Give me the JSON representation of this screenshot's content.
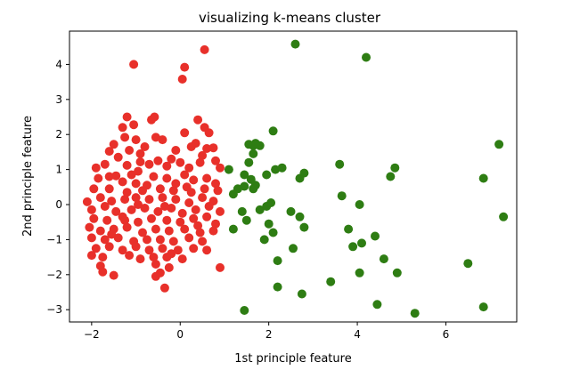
{
  "chart_data": {
    "type": "scatter",
    "title": "visualizing k-means cluster",
    "xlabel": "1st principle feature",
    "ylabel": "2nd principle feature",
    "xlim": [
      -2.5,
      7.6
    ],
    "ylim": [
      -3.35,
      4.95
    ],
    "xticks": [
      -2,
      0,
      2,
      4,
      6
    ],
    "yticks": [
      -3,
      -2,
      -1,
      0,
      1,
      2,
      3,
      4
    ],
    "grid": false,
    "legend": "none",
    "series": [
      {
        "color": "#e8302a",
        "points": [
          [
            -1.05,
            4.0
          ],
          [
            0.1,
            3.92
          ],
          [
            0.05,
            3.58
          ],
          [
            0.55,
            4.42
          ],
          [
            -1.2,
            2.5
          ],
          [
            -0.65,
            2.42
          ],
          [
            -0.58,
            2.5
          ],
          [
            -1.3,
            2.2
          ],
          [
            -1.05,
            2.28
          ],
          [
            0.4,
            2.42
          ],
          [
            0.55,
            2.2
          ],
          [
            0.65,
            2.05
          ],
          [
            0.1,
            2.05
          ],
          [
            -0.55,
            1.92
          ],
          [
            -1.5,
            1.72
          ],
          [
            -1.25,
            1.92
          ],
          [
            -1.0,
            1.85
          ],
          [
            -0.4,
            1.85
          ],
          [
            -0.8,
            1.65
          ],
          [
            0.35,
            1.75
          ],
          [
            0.6,
            1.6
          ],
          [
            0.75,
            1.62
          ],
          [
            -0.1,
            1.55
          ],
          [
            0.25,
            1.65
          ],
          [
            -1.6,
            1.52
          ],
          [
            -1.4,
            1.35
          ],
          [
            -1.7,
            1.15
          ],
          [
            -1.9,
            1.05
          ],
          [
            -1.2,
            1.12
          ],
          [
            -0.9,
            1.22
          ],
          [
            -0.7,
            1.15
          ],
          [
            -0.5,
            1.25
          ],
          [
            -0.2,
            1.3
          ],
          [
            -0.3,
            1.1
          ],
          [
            0.0,
            1.2
          ],
          [
            0.2,
            1.05
          ],
          [
            0.45,
            1.2
          ],
          [
            0.8,
            1.25
          ],
          [
            0.9,
            1.05
          ],
          [
            -1.45,
            0.82
          ],
          [
            -1.1,
            0.85
          ],
          [
            -0.95,
            0.95
          ],
          [
            -1.85,
            0.75
          ],
          [
            -1.6,
            0.8
          ],
          [
            -1.3,
            0.65
          ],
          [
            -1.0,
            0.6
          ],
          [
            -0.6,
            0.8
          ],
          [
            -0.3,
            0.75
          ],
          [
            0.1,
            0.85
          ],
          [
            0.3,
            0.7
          ],
          [
            0.6,
            0.75
          ],
          [
            0.8,
            0.6
          ],
          [
            -0.75,
            0.55
          ],
          [
            0.15,
            0.5
          ],
          [
            -1.95,
            0.45
          ],
          [
            -1.6,
            0.45
          ],
          [
            -1.2,
            0.35
          ],
          [
            -0.85,
            0.4
          ],
          [
            -0.45,
            0.45
          ],
          [
            -0.15,
            0.4
          ],
          [
            0.25,
            0.35
          ],
          [
            0.55,
            0.45
          ],
          [
            0.85,
            0.4
          ],
          [
            -2.1,
            0.08
          ],
          [
            -1.8,
            0.2
          ],
          [
            -1.55,
            0.1
          ],
          [
            -1.25,
            0.15
          ],
          [
            -1.0,
            0.2
          ],
          [
            -0.7,
            0.15
          ],
          [
            -0.4,
            0.2
          ],
          [
            -0.1,
            0.15
          ],
          [
            0.2,
            0.05
          ],
          [
            0.5,
            0.2
          ],
          [
            0.75,
            0.1
          ],
          [
            -0.95,
            0.0
          ],
          [
            -0.35,
            -0.05
          ],
          [
            -2.0,
            -0.15
          ],
          [
            -1.7,
            -0.05
          ],
          [
            -1.45,
            -0.2
          ],
          [
            -1.1,
            -0.15
          ],
          [
            -0.8,
            -0.1
          ],
          [
            -0.5,
            -0.2
          ],
          [
            -0.2,
            -0.1
          ],
          [
            0.05,
            -0.25
          ],
          [
            0.35,
            -0.15
          ],
          [
            0.65,
            -0.05
          ],
          [
            0.9,
            -0.2
          ],
          [
            -1.95,
            -0.4
          ],
          [
            -1.65,
            -0.45
          ],
          [
            -1.3,
            -0.35
          ],
          [
            -0.95,
            -0.5
          ],
          [
            -0.65,
            -0.4
          ],
          [
            -0.3,
            -0.45
          ],
          [
            0.0,
            -0.5
          ],
          [
            0.3,
            -0.4
          ],
          [
            0.6,
            -0.35
          ],
          [
            0.8,
            -0.55
          ],
          [
            -2.05,
            -0.65
          ],
          [
            -1.8,
            -0.75
          ],
          [
            -1.5,
            -0.7
          ],
          [
            -1.2,
            -0.65
          ],
          [
            -0.85,
            -0.8
          ],
          [
            -0.55,
            -0.7
          ],
          [
            -0.25,
            -0.75
          ],
          [
            0.1,
            -0.7
          ],
          [
            0.4,
            -0.6
          ],
          [
            0.75,
            -0.75
          ],
          [
            -2.0,
            -0.95
          ],
          [
            -1.7,
            -1.0
          ],
          [
            -1.4,
            -0.95
          ],
          [
            -1.05,
            -1.05
          ],
          [
            -0.75,
            -1.0
          ],
          [
            -0.45,
            -1.0
          ],
          [
            -0.15,
            -1.05
          ],
          [
            0.2,
            -0.95
          ],
          [
            0.5,
            -1.05
          ],
          [
            -1.9,
            -1.25
          ],
          [
            -1.6,
            -1.2
          ],
          [
            -1.3,
            -1.3
          ],
          [
            -1.0,
            -1.2
          ],
          [
            -0.7,
            -1.3
          ],
          [
            -0.4,
            -1.25
          ],
          [
            -0.05,
            -1.3
          ],
          [
            0.3,
            -1.25
          ],
          [
            -2.0,
            -1.45
          ],
          [
            -1.75,
            -1.5
          ],
          [
            -1.15,
            -1.45
          ],
          [
            -0.9,
            -1.55
          ],
          [
            -0.6,
            -1.5
          ],
          [
            -0.3,
            -1.5
          ],
          [
            0.05,
            -1.55
          ],
          [
            -1.8,
            -1.75
          ],
          [
            -0.55,
            -1.7
          ],
          [
            -0.25,
            -1.8
          ],
          [
            0.9,
            -1.8
          ],
          [
            -1.75,
            -1.92
          ],
          [
            -1.5,
            -2.02
          ],
          [
            -0.45,
            -1.95
          ],
          [
            -0.55,
            -2.05
          ],
          [
            -0.35,
            -2.38
          ],
          [
            -1.15,
            1.55
          ],
          [
            -0.9,
            1.45
          ],
          [
            0.5,
            1.4
          ],
          [
            -1.25,
            -0.45
          ],
          [
            -0.1,
            0.6
          ],
          [
            0.45,
            -0.8
          ],
          [
            -1.55,
            -0.85
          ],
          [
            -0.2,
            -1.4
          ],
          [
            0.6,
            -1.3
          ]
        ]
      },
      {
        "color": "#2e7d13",
        "points": [
          [
            2.6,
            4.58
          ],
          [
            4.2,
            4.2
          ],
          [
            7.2,
            1.72
          ],
          [
            6.85,
            0.75
          ],
          [
            7.3,
            -0.35
          ],
          [
            6.5,
            -1.68
          ],
          [
            6.85,
            -2.92
          ],
          [
            5.3,
            -3.1
          ],
          [
            1.45,
            -3.02
          ],
          [
            2.1,
            2.1
          ],
          [
            1.55,
            1.72
          ],
          [
            1.65,
            1.68
          ],
          [
            1.8,
            1.68
          ],
          [
            1.7,
            1.75
          ],
          [
            1.65,
            1.45
          ],
          [
            1.55,
            1.2
          ],
          [
            1.1,
            1.0
          ],
          [
            1.45,
            0.85
          ],
          [
            1.6,
            0.72
          ],
          [
            1.45,
            0.52
          ],
          [
            1.3,
            0.45
          ],
          [
            1.7,
            0.55
          ],
          [
            1.65,
            0.45
          ],
          [
            1.2,
            0.3
          ],
          [
            1.95,
            0.85
          ],
          [
            2.15,
            1.0
          ],
          [
            2.3,
            1.05
          ],
          [
            2.7,
            0.75
          ],
          [
            2.8,
            0.9
          ],
          [
            3.6,
            1.15
          ],
          [
            4.85,
            1.05
          ],
          [
            4.75,
            0.8
          ],
          [
            1.4,
            -0.2
          ],
          [
            1.5,
            -0.45
          ],
          [
            1.8,
            -0.15
          ],
          [
            1.95,
            -0.05
          ],
          [
            2.05,
            0.05
          ],
          [
            2.0,
            -0.55
          ],
          [
            2.1,
            -0.8
          ],
          [
            1.9,
            -1.0
          ],
          [
            2.5,
            -0.2
          ],
          [
            2.7,
            -0.35
          ],
          [
            2.8,
            -0.65
          ],
          [
            3.65,
            0.25
          ],
          [
            4.05,
            0.0
          ],
          [
            3.8,
            -0.7
          ],
          [
            4.4,
            -0.9
          ],
          [
            4.1,
            -1.1
          ],
          [
            1.2,
            -0.7
          ],
          [
            2.55,
            -1.25
          ],
          [
            2.2,
            -1.6
          ],
          [
            3.9,
            -1.2
          ],
          [
            4.6,
            -1.55
          ],
          [
            4.05,
            -1.95
          ],
          [
            4.9,
            -1.95
          ],
          [
            3.4,
            -2.2
          ],
          [
            2.2,
            -2.35
          ],
          [
            2.75,
            -2.55
          ],
          [
            4.45,
            -2.85
          ]
        ]
      }
    ]
  }
}
